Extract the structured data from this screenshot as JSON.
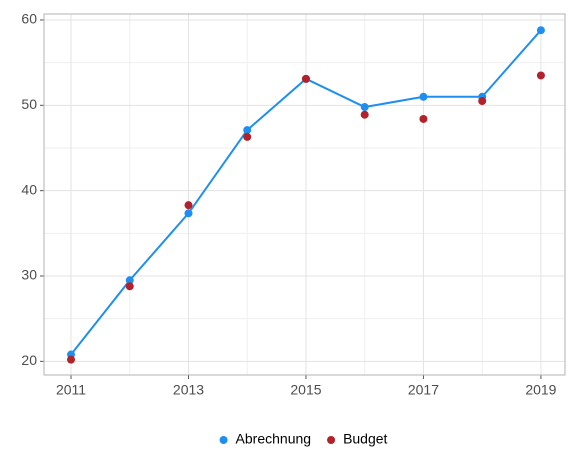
{
  "chart_data": {
    "type": "line",
    "x": [
      2011,
      2012,
      2013,
      2014,
      2015,
      2016,
      2017,
      2018,
      2019
    ],
    "series": [
      {
        "name": "Abrechnung",
        "color": "#1f8fef",
        "line": true,
        "values": [
          20.8,
          29.5,
          37.35,
          47.1,
          53.1,
          49.8,
          51.0,
          51.0,
          58.8
        ]
      },
      {
        "name": "Budget",
        "color": "#b2222a",
        "line": false,
        "values": [
          20.2,
          28.8,
          38.3,
          46.3,
          53.1,
          48.9,
          48.4,
          50.5,
          53.5
        ]
      }
    ],
    "xlim": [
      2010.54,
      2019.41
    ],
    "xticks": [
      2011,
      2013,
      2015,
      2017,
      2019
    ],
    "ylim": [
      18.4,
      60.7
    ],
    "yticks": [
      20,
      30,
      40,
      50,
      60
    ],
    "grid": true,
    "minor_grid": true,
    "legend": "bottom"
  }
}
